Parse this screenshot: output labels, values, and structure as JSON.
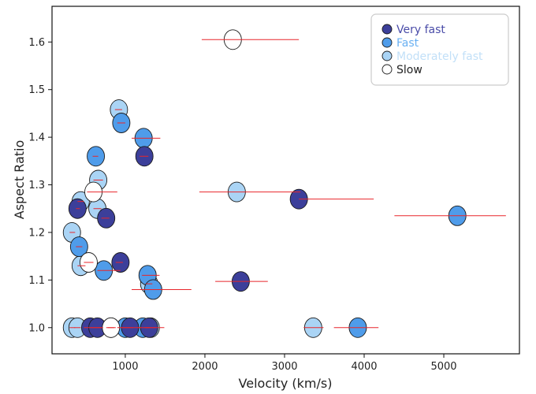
{
  "chart_data": {
    "type": "scatter",
    "xlabel": "Velocity (km/s)",
    "ylabel": "Aspect Ratio",
    "xlim": [
      80,
      5950
    ],
    "ylim": [
      0.945,
      1.675
    ],
    "x_ticks": [
      1000,
      2000,
      3000,
      4000,
      5000
    ],
    "y_ticks": [
      1.0,
      1.1,
      1.2,
      1.3,
      1.4,
      1.5,
      1.6
    ],
    "x_tick_labels": [
      "1000",
      "2000",
      "3000",
      "4000",
      "5000"
    ],
    "y_tick_labels": [
      "1.0",
      "1.1",
      "1.2",
      "1.3",
      "1.4",
      "1.5",
      "1.6"
    ],
    "grid": false,
    "legend_position": "top-right",
    "error_bar_color": "#e8262b",
    "series": [
      {
        "name": "Very fast",
        "fill": "#3c3f9a",
        "text_color": "#4a4ca8",
        "points": [
          {
            "x": 3180,
            "y": 1.27,
            "xerr_lo": 3180,
            "xerr_hi": 4120
          },
          {
            "x": 2450,
            "y": 1.097,
            "xerr_lo": 2130,
            "xerr_hi": 2790
          },
          {
            "x": 1240,
            "y": 1.36,
            "xerr_lo": 1180,
            "xerr_hi": 1290
          },
          {
            "x": 760,
            "y": 1.23,
            "xerr_lo": 700,
            "xerr_hi": 800
          },
          {
            "x": 940,
            "y": 1.137,
            "xerr_lo": 880,
            "xerr_hi": 970
          },
          {
            "x": 400,
            "y": 1.25,
            "xerr_lo": 380,
            "xerr_hi": 430
          },
          {
            "x": 560,
            "y": 1.0,
            "xerr_lo": 480,
            "xerr_hi": 720
          },
          {
            "x": 650,
            "y": 1.0,
            "xerr_lo": 560,
            "xerr_hi": 720
          },
          {
            "x": 1060,
            "y": 1.0,
            "xerr_lo": 900,
            "xerr_hi": 1200
          },
          {
            "x": 1300,
            "y": 1.0,
            "xerr_lo": 1240,
            "xerr_hi": 1490
          }
        ]
      },
      {
        "name": "Fast",
        "fill": "#4f9cea",
        "text_color": "#69b0f2",
        "points": [
          {
            "x": 5170,
            "y": 1.235,
            "xerr_lo": 4380,
            "xerr_hi": 5780
          },
          {
            "x": 3920,
            "y": 1.0,
            "xerr_lo": 3620,
            "xerr_hi": 4180
          },
          {
            "x": 1230,
            "y": 1.398,
            "xerr_lo": 1080,
            "xerr_hi": 1440
          },
          {
            "x": 950,
            "y": 1.43,
            "xerr_lo": 900,
            "xerr_hi": 1000
          },
          {
            "x": 630,
            "y": 1.36,
            "xerr_lo": 590,
            "xerr_hi": 660
          },
          {
            "x": 420,
            "y": 1.17,
            "xerr_lo": 380,
            "xerr_hi": 460
          },
          {
            "x": 730,
            "y": 1.12,
            "xerr_lo": 650,
            "xerr_hi": 940
          },
          {
            "x": 1280,
            "y": 1.11,
            "xerr_lo": 1210,
            "xerr_hi": 1430
          },
          {
            "x": 1350,
            "y": 1.08,
            "xerr_lo": 1080,
            "xerr_hi": 1830
          },
          {
            "x": 1000,
            "y": 1.0,
            "xerr_lo": 950,
            "xerr_hi": 1100
          },
          {
            "x": 1220,
            "y": 1.0,
            "xerr_lo": 1150,
            "xerr_hi": 1300
          }
        ]
      },
      {
        "name": "Moderately fast",
        "fill": "#aad4f5",
        "text_color": "#c2e0f8",
        "points": [
          {
            "x": 2400,
            "y": 1.285,
            "xerr_lo": 1930,
            "xerr_hi": 3200
          },
          {
            "x": 3360,
            "y": 1.0,
            "xerr_lo": 3240,
            "xerr_hi": 3490
          },
          {
            "x": 920,
            "y": 1.458,
            "xerr_lo": 870,
            "xerr_hi": 960
          },
          {
            "x": 660,
            "y": 1.31,
            "xerr_lo": 600,
            "xerr_hi": 720
          },
          {
            "x": 440,
            "y": 1.265,
            "xerr_lo": 400,
            "xerr_hi": 480
          },
          {
            "x": 650,
            "y": 1.25,
            "xerr_lo": 600,
            "xerr_hi": 700
          },
          {
            "x": 330,
            "y": 1.2,
            "xerr_lo": 300,
            "xerr_hi": 370
          },
          {
            "x": 440,
            "y": 1.13,
            "xerr_lo": 400,
            "xerr_hi": 500
          },
          {
            "x": 1300,
            "y": 1.092,
            "xerr_lo": 1260,
            "xerr_hi": 1340
          },
          {
            "x": 330,
            "y": 1.0,
            "xerr_lo": 300,
            "xerr_hi": 370
          },
          {
            "x": 400,
            "y": 1.0,
            "xerr_lo": 360,
            "xerr_hi": 440
          },
          {
            "x": 820,
            "y": 1.0,
            "xerr_lo": 780,
            "xerr_hi": 860
          },
          {
            "x": 1320,
            "y": 1.0,
            "xerr_lo": 1260,
            "xerr_hi": 1380
          }
        ]
      },
      {
        "name": "Slow",
        "fill": "#ffffff",
        "text_color": "#222222",
        "points": [
          {
            "x": 2350,
            "y": 1.605,
            "xerr_lo": 1960,
            "xerr_hi": 3180
          },
          {
            "x": 600,
            "y": 1.285,
            "xerr_lo": 520,
            "xerr_hi": 900
          },
          {
            "x": 540,
            "y": 1.137,
            "xerr_lo": 480,
            "xerr_hi": 600
          },
          {
            "x": 820,
            "y": 1.0,
            "xerr_lo": 760,
            "xerr_hi": 880
          }
        ]
      }
    ]
  }
}
